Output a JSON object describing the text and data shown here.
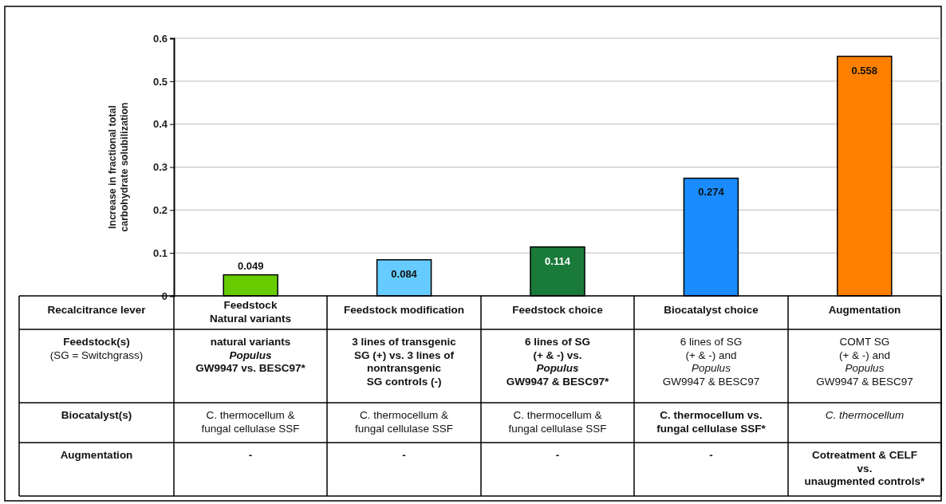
{
  "chart_data": {
    "type": "bar",
    "ylabel": "Increase in fractional total\ncarbohydrate solubilization",
    "categories": [
      "Feedstock\nNatural variants",
      "Feedstock modification",
      "Feedstock choice",
      "Biocatalyst choice",
      "Augmentation"
    ],
    "values": [
      0.049,
      0.084,
      0.114,
      0.274,
      0.558
    ],
    "colors": [
      "#66cc00",
      "#66ccff",
      "#1a7a3a",
      "#1a8cff",
      "#ff8000"
    ],
    "ylim": [
      0,
      0.6
    ],
    "yticks": [
      0,
      0.1,
      0.2,
      0.3,
      0.4,
      0.5,
      0.6
    ],
    "grid": "y",
    "data_labels": true,
    "annotations": [
      "Recalcitrance lever",
      "Feedstock(s)",
      "(SG = Switchgrass)",
      "Biocatalyst(s)",
      "Augmentation",
      "natural variants\nPopulus\nGW9947 vs. BESC97*",
      "3 lines of transgenic\nSG (+) vs. 3 lines of\nnontransgenic\nSG controls (-)",
      "6 lines of SG\n(+ & -) vs.\nPopulus\nGW9947 & BESC97*",
      "6 lines of SG\n(+ & -) and\nPopulus\nGW9947 & BESC97",
      "COMT SG\n(+ & -) and\nPopulus\nGW9947 & BESC97",
      "C. thermocellum &\nfungal cellulase SSF",
      "C. thermocellum &\nfungal cellulase SSF",
      "C. thermocellum &\nfungal cellulase SSF",
      "C. thermocellum vs.\nfungal cellulase SSF*",
      "C. thermocellum",
      "-",
      "-",
      "-",
      "-",
      "Cotreatment & CELF\nvs.\nunaugmented controls*"
    ]
  }
}
